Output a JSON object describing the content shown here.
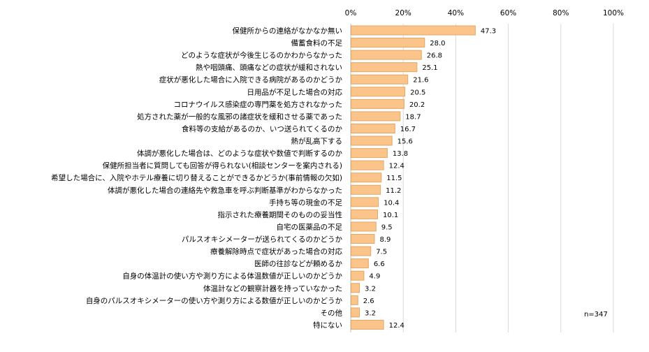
{
  "chart_data": {
    "type": "bar",
    "orientation": "horizontal",
    "title": "",
    "xlabel": "",
    "ylabel": "",
    "xlim": [
      0,
      100
    ],
    "x_ticks": [
      "0%",
      "20%",
      "40%",
      "60%",
      "80%",
      "100%"
    ],
    "tick_values": [
      0,
      20,
      40,
      60,
      80,
      100
    ],
    "grid": true,
    "bar_color": "#FAC48A",
    "bar_border": "#E3A765",
    "annotation": "n=347",
    "categories": [
      "保健所からの連絡がなかなか無い",
      "備蓄食料の不足",
      "どのような症状が今後生じるのかわからなかった",
      "熱や咽頭痛、頭痛などの症状が緩和されない",
      "症状が悪化した場合に入院できる病院があるのかどうか",
      "日用品が不足した場合の対応",
      "コロナウイルス感染症の専門薬を処方されなかった",
      "処方された薬が一般的な風邪の諸症状を緩和させる薬であった",
      "食料等の支給があるのか、いつ送られてくるのか",
      "熱が乱高下する",
      "体調が悪化した場合は、どのような症状や数値で判断するのか",
      "保健所担当者に質問しても回答が得られない(相談センターを案内される)",
      "希望した場合に、入院やホテル療養に切り替えることができるかどうか(事前情報の欠如)",
      "体調が悪化した場合の連絡先や救急車を呼ぶ判断基準がわからなかった",
      "手持ち等の現金の不足",
      "指示された療養期間そのものの妥当性",
      "自宅の医薬品の不足",
      "パルスオキシメーターが送られてくるのかどうか",
      "療養解除時点で症状があった場合の対応",
      "医師の往診などが頼めるか",
      "自身の体温計の使い方や測り方による体温数値が正しいのかどうか",
      "体温計などの観察計器を持っていなかった",
      "自身のパルスオキシメーターの使い方や測り方による数値が正しいのかどうか",
      "その他",
      "特にない"
    ],
    "values": [
      47.3,
      28.0,
      26.8,
      25.1,
      21.6,
      20.5,
      20.2,
      18.7,
      16.7,
      15.6,
      13.8,
      12.4,
      11.5,
      11.2,
      10.4,
      10.1,
      9.5,
      8.9,
      7.5,
      6.6,
      4.9,
      3.2,
      2.6,
      3.2,
      12.4
    ]
  }
}
